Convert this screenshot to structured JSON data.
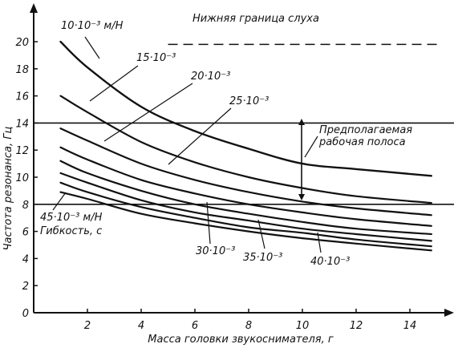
{
  "chart_data": {
    "type": "line",
    "xlabel": "Масса головки звукоснимателя, г",
    "ylabel": "Частота резонанса, Гц",
    "xlim": [
      0,
      15
    ],
    "ylim": [
      0,
      21
    ],
    "x_ticks": [
      2,
      4,
      6,
      8,
      10,
      12,
      14
    ],
    "y_ticks": [
      0,
      2,
      4,
      6,
      8,
      10,
      12,
      14,
      16,
      18,
      20
    ],
    "x_tick_labels": [
      "2",
      "4",
      "6",
      "8",
      "10",
      "12",
      "14"
    ],
    "y_tick_labels": [
      "0",
      "2",
      "4",
      "6",
      "8",
      "10",
      "12",
      "14",
      "16",
      "18",
      "20"
    ],
    "series": [
      {
        "name": "10·10⁻³ м/Н",
        "x": [
          1,
          2,
          4,
          6,
          8,
          10,
          12,
          14.8
        ],
        "y": [
          20.0,
          18.1,
          15.2,
          13.4,
          12.1,
          11.0,
          10.6,
          10.1
        ]
      },
      {
        "name": "15·10⁻³",
        "x": [
          1,
          2,
          4,
          6,
          8,
          10,
          12,
          14.8
        ],
        "y": [
          16.0,
          14.8,
          12.6,
          11.1,
          10.0,
          9.2,
          8.6,
          8.1
        ]
      },
      {
        "name": "20·10⁻³",
        "x": [
          1,
          2,
          4,
          6,
          8,
          10,
          12,
          14.8
        ],
        "y": [
          13.6,
          12.7,
          11.0,
          9.8,
          8.9,
          8.2,
          7.7,
          7.2
        ]
      },
      {
        "name": "25·10⁻³",
        "x": [
          1,
          2,
          4,
          6,
          8,
          10,
          12,
          14.8
        ],
        "y": [
          12.2,
          11.3,
          9.8,
          8.8,
          8.0,
          7.4,
          6.9,
          6.4
        ]
      },
      {
        "name": "30·10⁻³",
        "x": [
          1,
          2,
          4,
          6,
          8,
          10,
          12,
          14.8
        ],
        "y": [
          11.2,
          10.3,
          9.0,
          8.0,
          7.3,
          6.7,
          6.2,
          5.8
        ]
      },
      {
        "name": "35·10⁻³",
        "x": [
          1,
          2,
          4,
          6,
          8,
          10,
          12,
          14.8
        ],
        "y": [
          10.3,
          9.6,
          8.3,
          7.4,
          6.8,
          6.2,
          5.8,
          5.3
        ]
      },
      {
        "name": "40·10⁻³",
        "x": [
          1,
          2,
          4,
          6,
          8,
          10,
          12,
          14.8
        ],
        "y": [
          9.6,
          8.9,
          7.8,
          7.0,
          6.3,
          5.9,
          5.4,
          4.9
        ]
      },
      {
        "name": "45·10⁻³ м/Н",
        "x": [
          1,
          2,
          4,
          6,
          8,
          10,
          12,
          14.8
        ],
        "y": [
          8.9,
          8.4,
          7.3,
          6.6,
          6.0,
          5.5,
          5.1,
          4.6
        ]
      }
    ],
    "reference_lines": [
      {
        "label": "Нижняя граница слуха",
        "y": 19.8,
        "x_from": 5,
        "x_to": 15,
        "style": "dashed"
      },
      {
        "y": 14,
        "style": "solid"
      },
      {
        "y": 8,
        "style": "solid"
      }
    ],
    "annotations": {
      "band_label_line1": "Предполагаемая",
      "band_label_line2": "рабочая полоса",
      "legend_title": "Гибкость, с",
      "band_range": [
        8,
        14
      ]
    },
    "grid": false,
    "legend": "inline labels"
  },
  "labels": {
    "c10": "10·10⁻³ м/Н",
    "c15": "15·10⁻³",
    "c20": "20·10⁻³",
    "c25": "25·10⁻³",
    "c30": "30·10⁻³",
    "c35": "35·10⁻³",
    "c40": "40·10⁻³",
    "c45": "45·10⁻³ м/Н",
    "compliance": "Гибкость, с",
    "hearing": "Нижняя граница слуха",
    "band1": "Предполагаемая",
    "band2": "рабочая полоса"
  },
  "colors": {
    "ink": "#111111",
    "background": "#ffffff"
  }
}
